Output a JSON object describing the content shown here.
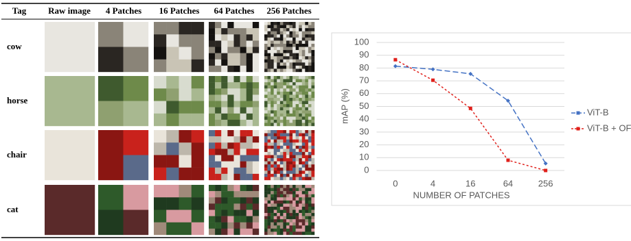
{
  "table": {
    "headers": [
      "Tag",
      "Raw image",
      "4 Patches",
      "16 Patches",
      "64 Patches",
      "256 Patches"
    ],
    "rows": [
      "cow",
      "horse",
      "chair",
      "cat"
    ]
  },
  "chart_data": {
    "type": "line",
    "y_label": "mAP (%)",
    "x_label": "NUMBER OF PATCHES",
    "categories": [
      "0",
      "4",
      "16",
      "64",
      "256"
    ],
    "series": [
      {
        "name": "ViT-B",
        "color": "#4472c4",
        "values": [
          81.5,
          79,
          75.5,
          54.5,
          5.5
        ]
      },
      {
        "name": "ViT-B + OFA",
        "color": "#e0201b",
        "values": [
          86.5,
          70.5,
          48.5,
          8,
          0
        ]
      }
    ],
    "ylim": [
      0,
      100
    ],
    "yticks": [
      0,
      10,
      20,
      30,
      40,
      50,
      60,
      70,
      80,
      90,
      100
    ],
    "grid": true,
    "legend": "right"
  }
}
